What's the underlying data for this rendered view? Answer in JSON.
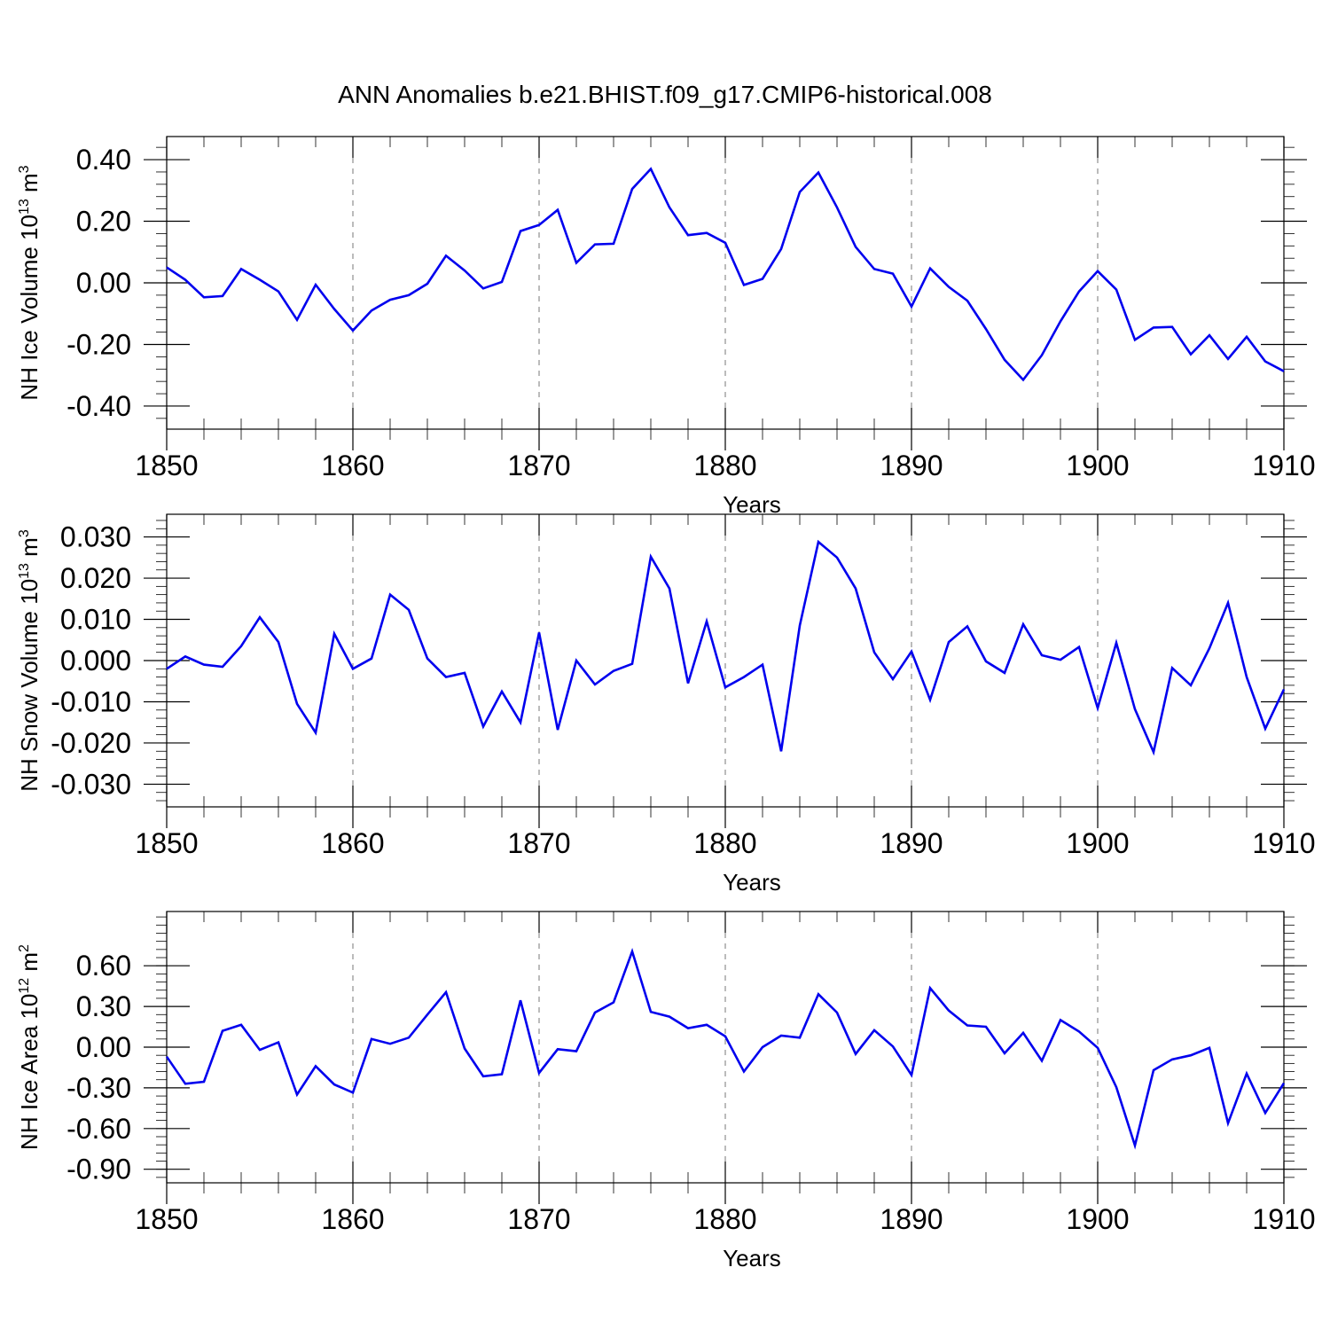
{
  "title": "ANN Anomalies b.e21.BHIST.f09_g17.CMIP6-historical.008",
  "colors": {
    "series": "#0000ee",
    "frame": "#000000",
    "grid": "#777777"
  },
  "chart_data": [
    {
      "type": "line",
      "ylabel": "NH Ice Volume 10",
      "ylabel_exp": "13",
      "ylabel_unit": "m",
      "ylabel_unit_exp": "3",
      "xlabel": "Years",
      "xlim": [
        1850,
        1910
      ],
      "ylim": [
        -0.4,
        0.4
      ],
      "yticks": [
        -0.4,
        -0.2,
        0.0,
        0.2,
        0.4
      ],
      "ytick_labels": [
        "-0.40",
        "-0.20",
        "0.00",
        "0.20",
        "0.40"
      ],
      "xticks": [
        1850,
        1860,
        1870,
        1880,
        1890,
        1900,
        1910
      ],
      "xtick_labels": [
        "1850",
        "1860",
        "1870",
        "1880",
        "1890",
        "1900",
        "1910"
      ],
      "x_start": 1850,
      "values": [
        0.05,
        0.01,
        -0.047,
        -0.043,
        0.045,
        0.01,
        -0.028,
        -0.12,
        -0.006,
        -0.085,
        -0.155,
        -0.09,
        -0.055,
        -0.04,
        -0.003,
        0.088,
        0.04,
        -0.018,
        0.003,
        0.168,
        0.188,
        0.237,
        0.065,
        0.125,
        0.127,
        0.305,
        0.37,
        0.245,
        0.155,
        0.162,
        0.13,
        -0.007,
        0.013,
        0.11,
        0.295,
        0.358,
        0.245,
        0.117,
        0.045,
        0.03,
        -0.077,
        0.047,
        -0.013,
        -0.058,
        -0.15,
        -0.25,
        -0.315,
        -0.235,
        -0.125,
        -0.028,
        0.038,
        -0.022,
        -0.185,
        -0.145,
        -0.143,
        -0.232,
        -0.17,
        -0.247,
        -0.175,
        -0.255,
        -0.287
      ]
    },
    {
      "type": "line",
      "ylabel": "NH Snow Volume 10",
      "ylabel_exp": "13",
      "ylabel_unit": "m",
      "ylabel_unit_exp": "3",
      "xlabel": "Years",
      "xlim": [
        1850,
        1910
      ],
      "ylim": [
        -0.03,
        0.03
      ],
      "yticks": [
        -0.03,
        -0.02,
        -0.01,
        0.0,
        0.01,
        0.02,
        0.03
      ],
      "ytick_labels": [
        "-0.030",
        "-0.020",
        "-0.010",
        "0.000",
        "0.010",
        "0.020",
        "0.030"
      ],
      "xticks": [
        1850,
        1860,
        1870,
        1880,
        1890,
        1900,
        1910
      ],
      "xtick_labels": [
        "1850",
        "1860",
        "1870",
        "1880",
        "1890",
        "1900",
        "1910"
      ],
      "x_start": 1850,
      "values": [
        -0.002,
        0.001,
        -0.001,
        -0.0015,
        0.0035,
        0.0105,
        0.0045,
        -0.0105,
        -0.0175,
        0.0065,
        -0.002,
        0.0005,
        0.016,
        0.0123,
        0.0005,
        -0.004,
        -0.003,
        -0.016,
        -0.0075,
        -0.015,
        0.0068,
        -0.0168,
        0.0,
        -0.0058,
        -0.0025,
        -0.0008,
        0.0252,
        0.0175,
        -0.0055,
        0.0095,
        -0.0065,
        -0.004,
        -0.001,
        -0.022,
        0.0085,
        0.0288,
        0.025,
        0.0175,
        0.002,
        -0.0045,
        0.0022,
        -0.0095,
        0.0045,
        0.0083,
        -0.0002,
        -0.003,
        0.0088,
        0.0013,
        0.0002,
        0.0033,
        -0.0115,
        0.0043,
        -0.0118,
        -0.0222,
        -0.0018,
        -0.006,
        0.003,
        0.014,
        -0.004,
        -0.0165,
        -0.007
      ]
    },
    {
      "type": "line",
      "ylabel": "NH Ice Area 10",
      "ylabel_exp": "12",
      "ylabel_unit": "m",
      "ylabel_unit_exp": "2",
      "xlabel": "Years",
      "xlim": [
        1850,
        1910
      ],
      "ylim": [
        -0.9,
        0.9
      ],
      "yticks": [
        -0.9,
        -0.6,
        -0.3,
        0.0,
        0.3,
        0.6
      ],
      "ytick_labels": [
        "-0.90",
        "-0.60",
        "-0.30",
        "0.00",
        "0.30",
        "0.60"
      ],
      "xticks": [
        1850,
        1860,
        1870,
        1880,
        1890,
        1900,
        1910
      ],
      "xtick_labels": [
        "1850",
        "1860",
        "1870",
        "1880",
        "1890",
        "1900",
        "1910"
      ],
      "x_start": 1850,
      "values": [
        -0.07,
        -0.27,
        -0.255,
        0.12,
        0.165,
        -0.02,
        0.035,
        -0.35,
        -0.14,
        -0.275,
        -0.335,
        0.06,
        0.025,
        0.07,
        0.24,
        0.405,
        -0.01,
        -0.215,
        -0.2,
        0.345,
        -0.19,
        -0.015,
        -0.03,
        0.255,
        0.33,
        0.705,
        0.26,
        0.225,
        0.14,
        0.165,
        0.08,
        -0.18,
        0.0,
        0.085,
        0.07,
        0.39,
        0.255,
        -0.05,
        0.125,
        0.005,
        -0.205,
        0.435,
        0.27,
        0.16,
        0.15,
        -0.045,
        0.105,
        -0.1,
        0.2,
        0.115,
        -0.005,
        -0.295,
        -0.725,
        -0.17,
        -0.09,
        -0.06,
        -0.005,
        -0.56,
        -0.195,
        -0.485,
        -0.265
      ]
    }
  ]
}
